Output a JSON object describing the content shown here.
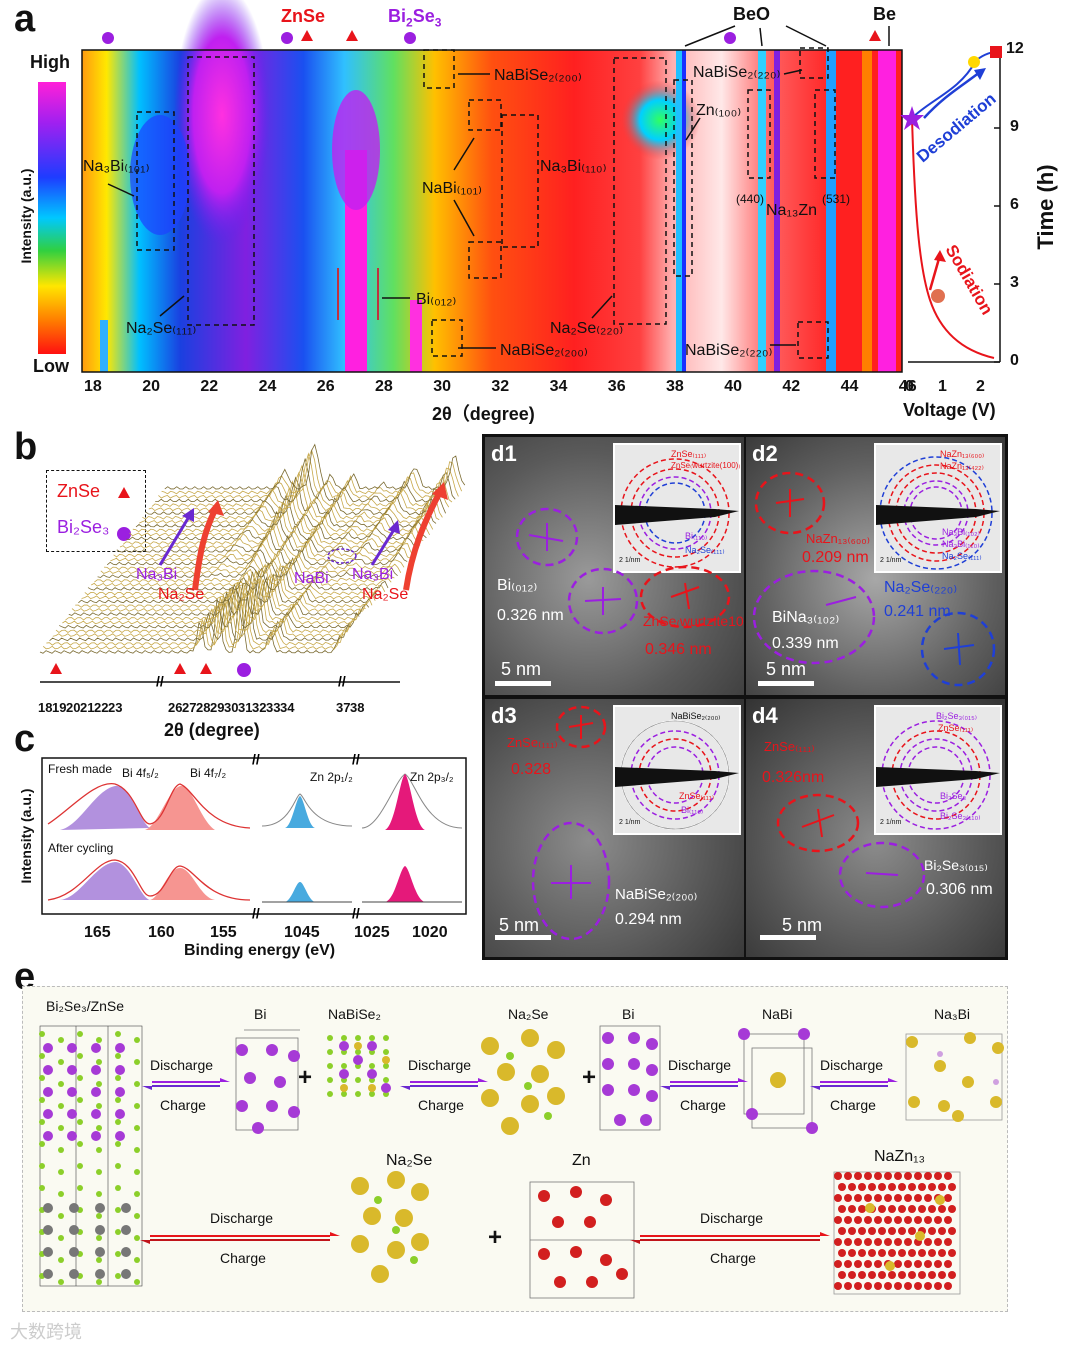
{
  "panel_a": {
    "label": "a",
    "colorbar": {
      "high": "High",
      "low": "Low",
      "axis": "Intensity (a.u.)"
    },
    "top_labels": {
      "znse": "ZnSe",
      "bi2se3_main": "Bi",
      "bi2se3_sub": "2",
      "bi2se3_tail": "Se",
      "bi2se3_sub2": "3",
      "beo": "BeO",
      "be": "Be"
    },
    "xlabel": "2θ（degree)",
    "xticks": [
      "18",
      "20",
      "22",
      "24",
      "26",
      "28",
      "30",
      "32",
      "34",
      "36",
      "38",
      "40",
      "42",
      "44",
      "46"
    ],
    "annotations": {
      "na3bi_101": "Na₃Bi₍₁₀₁₎",
      "na2se_111": "Na₂Se₍₁₁₁₎",
      "nabise2_200_top": "NaBiSe₂₍₂₀₀₎",
      "nabise2_200_bot": "NaBiSe₂₍₂₀₀₎",
      "nabise2_220_top": "NaBiSe₂₍₂₂₀₎",
      "nabise2_220_bot": "NaBiSe₂₍₂₂₀₎",
      "zn_100": "Zn₍₁₀₀₎",
      "nabi_101": "NaBi₍₁₀₁₎",
      "na3bi_110": "Na₃Bi₍₁₁₀₎",
      "bi_012": "Bi₍₀₁₂₎",
      "na2se_220": "Na₂Se₍₂₂₀₎",
      "na13zn": "Na₁₃Zn",
      "m440": "(440)",
      "m531": "(531)"
    },
    "voltage_panel": {
      "xlabel": "Voltage (V)",
      "xticks": [
        "0",
        "1",
        "2"
      ],
      "ylabel": "Time (h)",
      "yticks": [
        "0",
        "3",
        "6",
        "9",
        "12"
      ],
      "desodiation": "Desodiation",
      "sodiation": "Sodiation"
    }
  },
  "panel_b": {
    "label": "b",
    "legend_znse": "ZnSe",
    "legend_bi2se3": "Bi₂Se₃",
    "xlabel": "2θ (degree)",
    "xticks": [
      "18",
      "19",
      "20",
      "21",
      "22",
      "23",
      "26",
      "27",
      "28",
      "29",
      "30",
      "31",
      "32",
      "33",
      "34",
      "37",
      "38"
    ],
    "labels": {
      "na3bi_a": "Na₃Bi",
      "na2se_a": "Na₂Se",
      "nabi": "NaBi",
      "na3bi_b": "Na₃Bi",
      "na2se_b": "Na₂Se"
    }
  },
  "panel_c": {
    "label": "c",
    "ylabel": "Intensity (a.u.)",
    "xlabel": "Binding energy (eV)",
    "fresh": "Fresh made",
    "after": "After cycling",
    "bi_52": "Bi 4f₅/₂",
    "bi_72": "Bi 4f₇/₂",
    "zn_12": "Zn 2p₁/₂",
    "zn_32": "Zn 2p₃/₂",
    "xticks": [
      "165",
      "160",
      "155",
      "1045",
      "1025",
      "1020"
    ]
  },
  "panel_d": {
    "d1": {
      "label": "d1",
      "bi": "Bi₍₀₁₂₎",
      "bi_d": "0.326 nm",
      "znse": "ZnSe₍wurtzite100₎",
      "znse_d": "0.346 nm",
      "scale": "5 nm",
      "ring_znse1": "ZnSe₍₁₁₁₎",
      "ring_znse2": "ZnSe₍wurtzite(100)₎",
      "ring_bi": "Bi₍₁₁₀₎",
      "ring_na2se": "Na₂Se₍₁₁₁₎",
      "inset_scale": "2 1/nm"
    },
    "d2": {
      "label": "d2",
      "nazn_d": "0.209 nm",
      "nazn": "NaZn₁₃₍₆₀₀₎",
      "bina": "BiNa₃₍₁₀₂₎",
      "bina_d": "0.339 nm",
      "na2se": "Na₂Se₍₂₂₀₎",
      "na2se_d": "0.241 nm",
      "scale": "5  nm",
      "ring1": "NaZn₁₃₍₆₀₀₎",
      "ring2": "NaZn₁₃₍₄₂₂₎",
      "ring3": "Na₃Bi₍₁₀₂₎",
      "ring4": "Na₃Bi₍₁₁₀₎",
      "ring5": "Na₂Se₍₁₁₁₎",
      "inset_scale": "2 1/nm"
    },
    "d3": {
      "label": "d3",
      "znse": "ZnSe₍₁₁₁₎",
      "znse_d": "0.328",
      "nabise2": "NaBiSe₂₍₂₀₀₎",
      "nabise2_d": "0.294 nm",
      "scale": "5 nm",
      "ring1": "NaBiSe₂₍₂₀₀₎",
      "ring2": "ZnSe₍₁₁₁₎",
      "ring3": "Bi₍₁₁₀₎",
      "inset_scale": "2 1/nm"
    },
    "d4": {
      "label": "d4",
      "znse": "ZnSe₍₁₁₁₎",
      "znse_d": "0.326nm",
      "bi2se3": "Bi₂Se₃₍₀₁₅₎",
      "bi2se3_d": "0.306 nm",
      "scale": "5 nm",
      "ring1": "Bi₂Se₃₍₀₁₅₎",
      "ring2": "ZnSe₍₁₁₁₎",
      "ring3": "Bi₂Se₃",
      "ring4": "Bi₂Se₃₍₁₁₀₎",
      "inset_scale": "2 1/nm"
    }
  },
  "panel_e": {
    "label": "e",
    "phases": {
      "bi2se3_znse": "Bi₂Se₃/ZnSe",
      "bi1": "Bi",
      "nabise2": "NaBiSe₂",
      "na2se1": "Na₂Se",
      "bi2": "Bi",
      "nabi": "NaBi",
      "na3bi": "Na₃Bi",
      "na2se2": "Na₂Se",
      "zn": "Zn",
      "nazn13": "NaZn₁₃"
    },
    "discharge": "Discharge",
    "charge": "Charge",
    "plus": "+"
  },
  "watermark": "大数跨境",
  "colors": {
    "red": "#e8141b",
    "purple": "#9b1fe0",
    "blue": "#1f3fd6",
    "bi_atom": "#a63ad6",
    "se_atom": "#8ccf2a",
    "na_atom": "#d9b92b",
    "zn_atom": "#d21f1f"
  }
}
